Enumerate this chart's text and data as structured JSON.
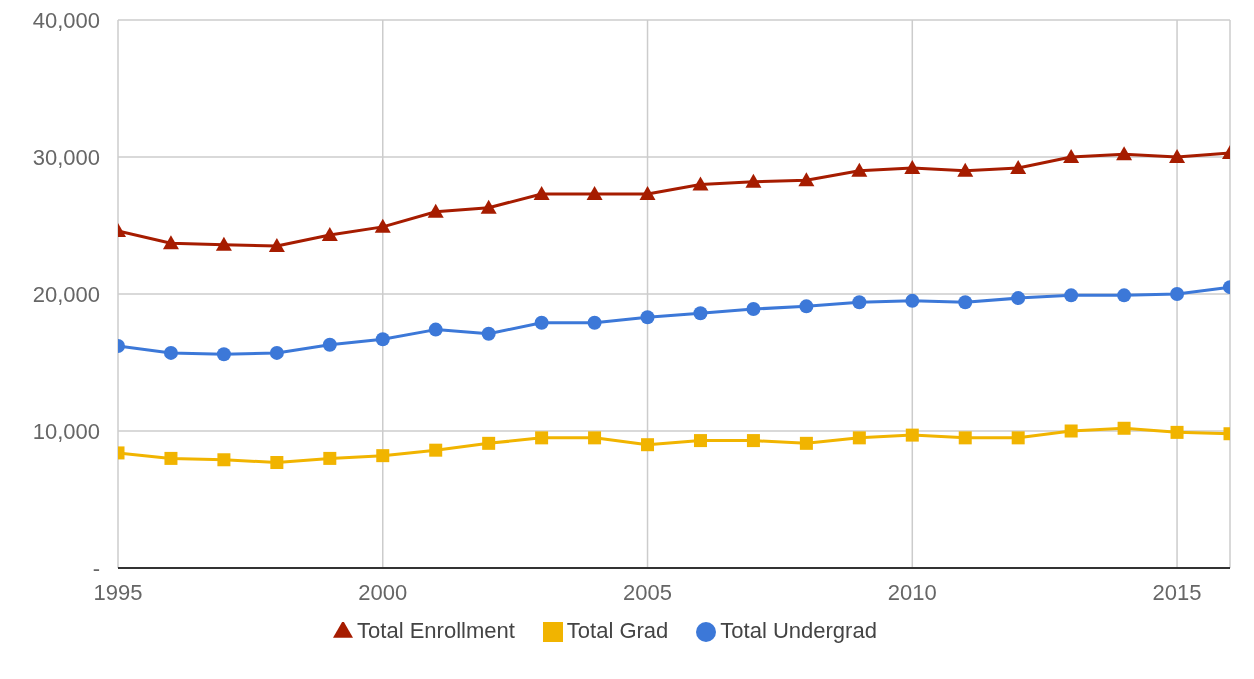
{
  "chart_data": {
    "type": "line",
    "x": [
      1995,
      1996,
      1997,
      1998,
      1999,
      2000,
      2001,
      2002,
      2003,
      2004,
      2005,
      2006,
      2007,
      2008,
      2009,
      2010,
      2011,
      2012,
      2013,
      2014,
      2015,
      2016
    ],
    "series": [
      {
        "name": "Total Enrollment",
        "color": "#a61c00",
        "marker": "triangle",
        "values": [
          24600,
          23700,
          23600,
          23500,
          24300,
          24900,
          26000,
          26300,
          27300,
          27300,
          27300,
          28000,
          28200,
          28300,
          29000,
          29200,
          29000,
          29200,
          30000,
          30200,
          30000,
          30300
        ]
      },
      {
        "name": "Total Undergrad",
        "color": "#3c78d8",
        "marker": "circle",
        "values": [
          16200,
          15700,
          15600,
          15700,
          16300,
          16700,
          17400,
          17100,
          17900,
          17900,
          18300,
          18600,
          18900,
          19100,
          19400,
          19500,
          19400,
          19700,
          19900,
          19900,
          20000,
          20500
        ]
      },
      {
        "name": "Total Grad",
        "color": "#f1b400",
        "marker": "square",
        "values": [
          8400,
          8000,
          7900,
          7700,
          8000,
          8200,
          8600,
          9100,
          9500,
          9500,
          9000,
          9300,
          9300,
          9100,
          9500,
          9700,
          9500,
          9500,
          10000,
          10200,
          9900,
          9800
        ]
      }
    ],
    "xlim": [
      1995,
      2016
    ],
    "xticks": [
      1995,
      2000,
      2005,
      2010,
      2015
    ],
    "ylim": [
      0,
      40000
    ],
    "yticks": [
      {
        "value": 0,
        "label": "-"
      },
      {
        "value": 10000,
        "label": "10,000"
      },
      {
        "value": 20000,
        "label": "20,000"
      },
      {
        "value": 30000,
        "label": "30,000"
      },
      {
        "value": 40000,
        "label": "40,000"
      }
    ],
    "grid": true,
    "legend": "bottom"
  }
}
